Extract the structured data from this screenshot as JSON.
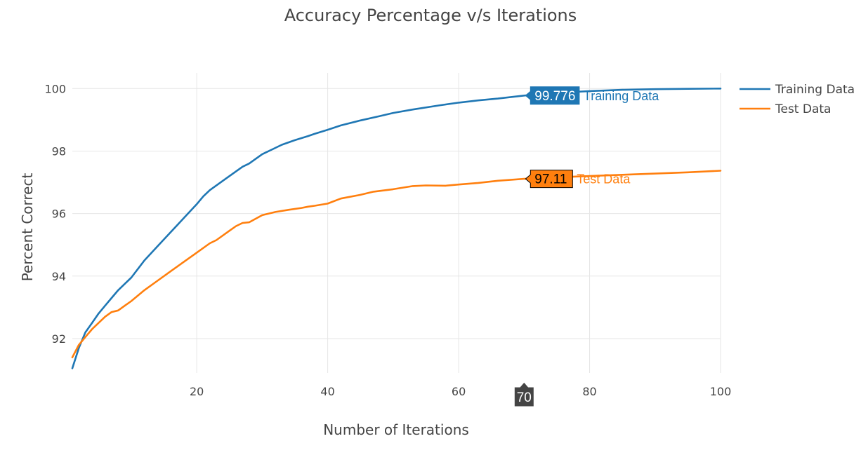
{
  "chart_data": {
    "type": "line",
    "title": "Accuracy Percentage v/s Iterations",
    "xlabel": "Number of Iterations",
    "ylabel": "Percent Correct",
    "xlim": [
      1,
      100
    ],
    "ylim": [
      90.9,
      100.5
    ],
    "x_ticks": [
      20,
      40,
      60,
      80,
      100
    ],
    "y_ticks": [
      92,
      94,
      96,
      98,
      100
    ],
    "grid": true,
    "legend_position": "top-right",
    "series": [
      {
        "name": "Training Data",
        "color": "#1f77b4",
        "x": [
          1,
          2,
          3,
          4,
          5,
          6,
          7,
          8,
          9,
          10,
          12,
          14,
          16,
          18,
          20,
          21,
          22,
          24,
          26,
          27,
          28,
          30,
          32,
          33,
          35,
          37,
          38,
          40,
          42,
          45,
          48,
          50,
          53,
          57,
          60,
          63,
          66,
          70,
          75,
          80,
          85,
          90,
          95,
          100
        ],
        "values": [
          91.05,
          91.7,
          92.2,
          92.5,
          92.8,
          93.05,
          93.3,
          93.55,
          93.75,
          93.95,
          94.5,
          94.95,
          95.4,
          95.85,
          96.3,
          96.55,
          96.75,
          97.05,
          97.35,
          97.5,
          97.6,
          97.9,
          98.1,
          98.2,
          98.35,
          98.48,
          98.55,
          98.68,
          98.82,
          98.98,
          99.12,
          99.22,
          99.33,
          99.46,
          99.55,
          99.62,
          99.68,
          99.776,
          99.86,
          99.92,
          99.96,
          99.98,
          99.99,
          100.0
        ]
      },
      {
        "name": "Test Data",
        "color": "#ff7f0e",
        "x": [
          1,
          2,
          3,
          4,
          5,
          6,
          7,
          8,
          9,
          10,
          12,
          14,
          16,
          18,
          20,
          22,
          23,
          25,
          26,
          27,
          28,
          30,
          32,
          34,
          36,
          37,
          38,
          40,
          42,
          45,
          47,
          50,
          53,
          55,
          58,
          60,
          63,
          66,
          70,
          75,
          80,
          85,
          90,
          95,
          100
        ],
        "values": [
          91.4,
          91.8,
          92.05,
          92.3,
          92.5,
          92.7,
          92.85,
          92.9,
          93.05,
          93.2,
          93.55,
          93.85,
          94.15,
          94.45,
          94.75,
          95.05,
          95.15,
          95.45,
          95.6,
          95.7,
          95.72,
          95.95,
          96.05,
          96.12,
          96.18,
          96.22,
          96.25,
          96.32,
          96.48,
          96.6,
          96.7,
          96.78,
          96.88,
          96.9,
          96.89,
          96.93,
          96.98,
          97.05,
          97.11,
          97.16,
          97.2,
          97.24,
          97.28,
          97.32,
          97.37
        ]
      }
    ],
    "hover": {
      "x": 70,
      "x_label": "70",
      "labels": [
        {
          "value": "99.776",
          "name": "Training Data",
          "y": 99.776,
          "bg": "#1f77b4",
          "text_color": "#ffffff",
          "name_color": "#1f77b4",
          "border": "#1f77b4"
        },
        {
          "value": "97.11",
          "name": "Test Data",
          "y": 97.11,
          "bg": "#ff7f0e",
          "text_color": "#000000",
          "name_color": "#ff7f0e",
          "border": "#000000"
        }
      ],
      "x_label_bg": "#444444"
    },
    "colors": {
      "grid": "#e6e6e6",
      "axis_text": "#444444",
      "title_text": "#444444"
    }
  }
}
